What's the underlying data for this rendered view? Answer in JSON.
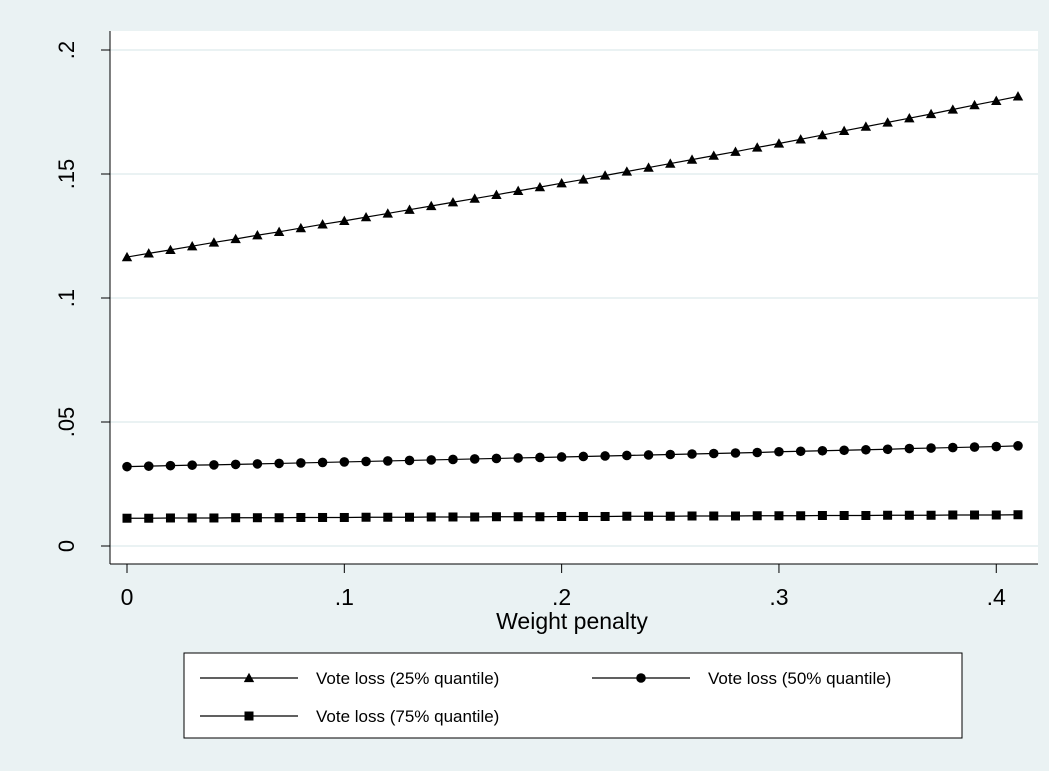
{
  "chart_data": {
    "type": "line",
    "title": "",
    "xlabel": "Weight penalty",
    "ylabel": "",
    "xlim": [
      0,
      0.41
    ],
    "ylim": [
      0,
      0.2
    ],
    "x_ticks": [
      {
        "value": 0,
        "label": "0"
      },
      {
        "value": 0.1,
        "label": ".1"
      },
      {
        "value": 0.2,
        "label": ".2"
      },
      {
        "value": 0.3,
        "label": ".3"
      },
      {
        "value": 0.4,
        "label": ".4"
      }
    ],
    "y_ticks": [
      {
        "value": 0,
        "label": "0"
      },
      {
        "value": 0.05,
        "label": ".05"
      },
      {
        "value": 0.1,
        "label": ".1"
      },
      {
        "value": 0.15,
        "label": ".15"
      },
      {
        "value": 0.2,
        "label": ".2"
      }
    ],
    "grid": true,
    "legend_position": "bottom",
    "x": [
      0,
      0.01,
      0.02,
      0.03,
      0.04,
      0.05,
      0.06,
      0.07,
      0.08,
      0.09,
      0.1,
      0.11,
      0.12,
      0.13,
      0.14,
      0.15,
      0.16,
      0.17,
      0.18,
      0.19,
      0.2,
      0.21,
      0.22,
      0.23,
      0.24,
      0.25,
      0.26,
      0.27,
      0.28,
      0.29,
      0.3,
      0.31,
      0.32,
      0.33,
      0.34,
      0.35,
      0.36,
      0.37,
      0.38,
      0.39,
      0.4,
      0.41
    ],
    "series": [
      {
        "name": "Vote loss (25% quantile)",
        "marker": "triangle",
        "values": [
          0.1165,
          0.118,
          0.1194,
          0.1209,
          0.1224,
          0.1238,
          0.1253,
          0.1267,
          0.1282,
          0.1297,
          0.1311,
          0.1326,
          0.1341,
          0.1356,
          0.1371,
          0.1386,
          0.1401,
          0.1416,
          0.1432,
          0.1447,
          0.1463,
          0.1478,
          0.1494,
          0.151,
          0.1526,
          0.1542,
          0.1558,
          0.1574,
          0.159,
          0.1607,
          0.1623,
          0.164,
          0.1657,
          0.1674,
          0.1691,
          0.1708,
          0.1725,
          0.1742,
          0.176,
          0.1778,
          0.1795,
          0.1813
        ]
      },
      {
        "name": "Vote loss (50% quantile)",
        "marker": "circle",
        "values": [
          0.032,
          0.0322,
          0.0324,
          0.0326,
          0.0327,
          0.0329,
          0.0331,
          0.0333,
          0.0335,
          0.0337,
          0.0339,
          0.0341,
          0.0343,
          0.0345,
          0.0347,
          0.0349,
          0.0351,
          0.0353,
          0.0355,
          0.0357,
          0.0359,
          0.0361,
          0.0363,
          0.0365,
          0.0367,
          0.0369,
          0.0371,
          0.0373,
          0.0375,
          0.0377,
          0.038,
          0.0382,
          0.0384,
          0.0386,
          0.0388,
          0.039,
          0.0393,
          0.0395,
          0.0397,
          0.0399,
          0.0401,
          0.0404
        ]
      },
      {
        "name": "Vote loss (75% quantile)",
        "marker": "square",
        "values": [
          0.0112,
          0.0112,
          0.0113,
          0.0113,
          0.0113,
          0.0114,
          0.0114,
          0.0114,
          0.0115,
          0.0115,
          0.0115,
          0.0116,
          0.0116,
          0.0116,
          0.0117,
          0.0117,
          0.0117,
          0.0118,
          0.0118,
          0.0118,
          0.0119,
          0.0119,
          0.0119,
          0.012,
          0.012,
          0.012,
          0.0121,
          0.0121,
          0.0121,
          0.0122,
          0.0122,
          0.0122,
          0.0123,
          0.0123,
          0.0123,
          0.0124,
          0.0124,
          0.0124,
          0.0125,
          0.0125,
          0.0125,
          0.0126
        ]
      }
    ],
    "colors": {
      "background": "#eaf2f3",
      "plot": "#ffffff",
      "grid": "#eaf2f3",
      "ink": "#000000"
    }
  }
}
